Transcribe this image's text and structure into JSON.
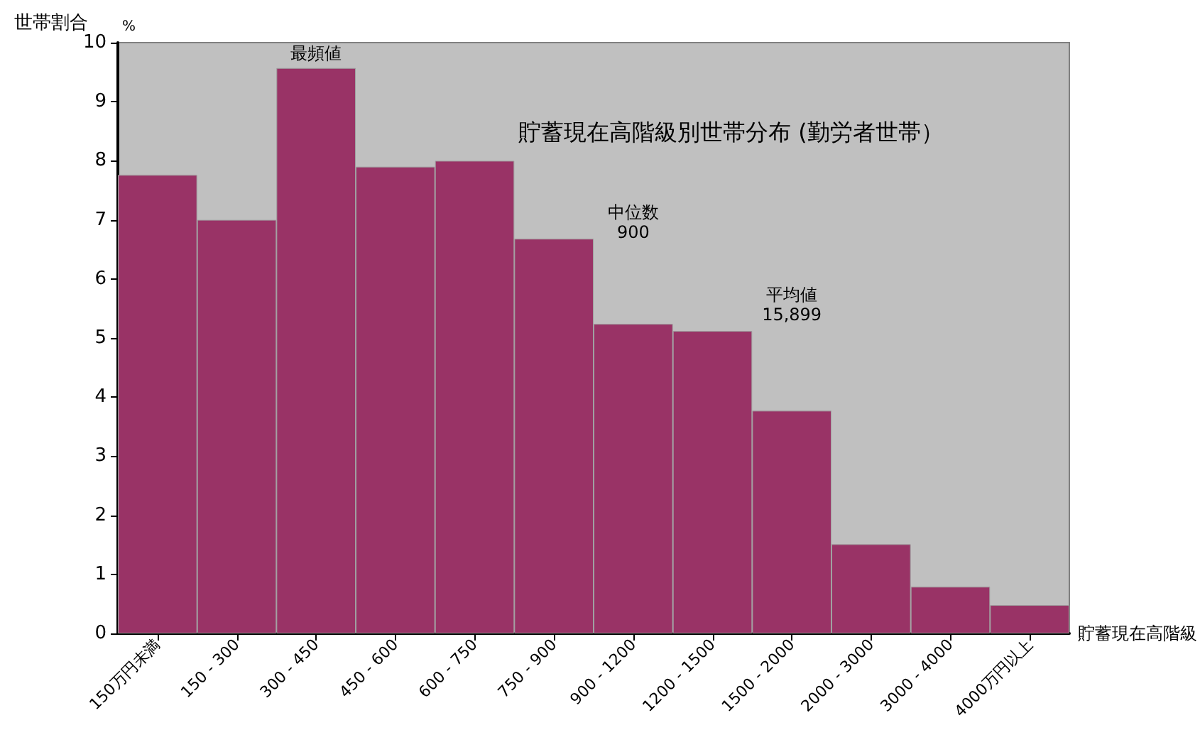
{
  "chart_data": {
    "type": "bar",
    "title": "貯蓄現在高階級別世帯分布 (勤労者世帯）",
    "xlabel": "貯蓄現在高階級",
    "ylabel": "世帯割合",
    "annotations": [
      "%",
      "最頻値",
      "中位数\n900",
      "平均値\n15,899"
    ],
    "categories": [
      "150万円未満",
      "150 - 300",
      "300 - 450",
      "450 - 600",
      "600 - 750",
      "750 - 900",
      "900 - 1200",
      "1200 - 1500",
      "1500 - 2000",
      "2000 - 3000",
      "3000 - 4000",
      "4000万円以上"
    ],
    "values": [
      7.76,
      7.0,
      9.57,
      7.9,
      8.0,
      6.68,
      5.24,
      5.12,
      3.77,
      1.51,
      0.79,
      0.48
    ],
    "color": "#993366",
    "ylim": [
      0,
      10
    ],
    "yticks": [
      0,
      1,
      2,
      3,
      4,
      5,
      6,
      7,
      8,
      9,
      10
    ]
  }
}
